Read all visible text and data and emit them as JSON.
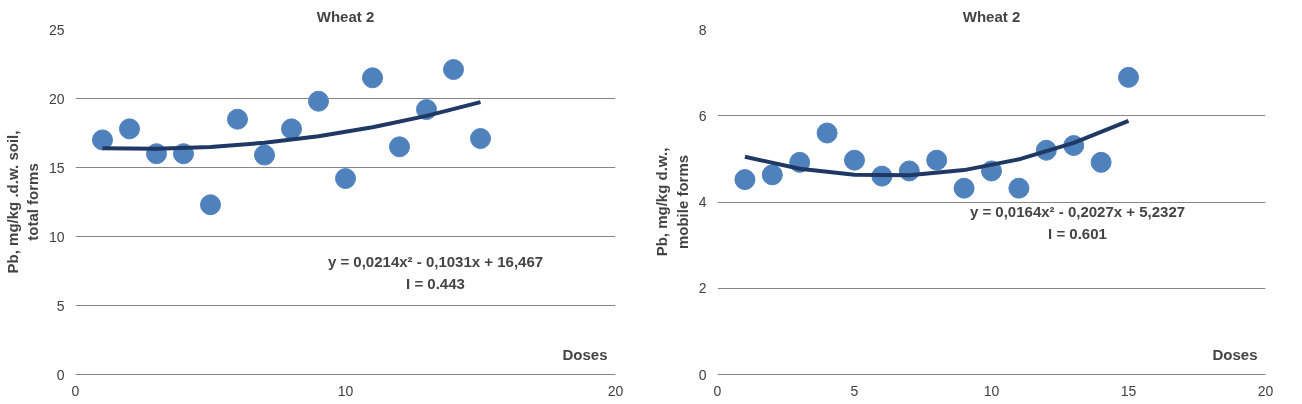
{
  "chart_data": [
    {
      "type": "scatter",
      "title": "Wheat 2",
      "xlabel": "Doses",
      "ylabel": "Pb, mg/kg .d.w. soil,\ntotal forms",
      "xlim": [
        0,
        20
      ],
      "xticks": [
        0,
        10,
        20
      ],
      "ylim": [
        0,
        25
      ],
      "yticks": [
        0,
        5,
        10,
        15,
        20,
        25
      ],
      "grid": "y",
      "series": [
        {
          "marker": "circle",
          "color": "#4f81bd",
          "x": [
            1,
            2,
            3,
            4,
            5,
            6,
            7,
            8,
            9,
            10,
            11,
            12,
            13,
            14,
            15
          ],
          "values": [
            17.0,
            17.8,
            16.0,
            16.0,
            12.3,
            18.5,
            15.9,
            17.8,
            19.8,
            14.2,
            21.5,
            16.5,
            19.2,
            22.1,
            17.1
          ]
        },
        {
          "type": "line",
          "marker": "none",
          "color": "#1f3864",
          "x": [
            1,
            3,
            5,
            7,
            9,
            11,
            13,
            15
          ],
          "values": [
            16.39,
            16.35,
            16.49,
            16.79,
            17.27,
            17.92,
            18.74,
            19.74
          ]
        }
      ],
      "annotations": [
        "y = 0,0214x² - 0,1031x + 16,467",
        "I = 0.443"
      ]
    },
    {
      "type": "scatter",
      "title": "Wheat 2",
      "xlabel": "Doses",
      "ylabel": "Pb, mg/kg d.w.,\nmobile forms",
      "xlim": [
        0,
        20
      ],
      "xticks": [
        0,
        5,
        10,
        15,
        20
      ],
      "ylim": [
        0,
        8
      ],
      "yticks": [
        0,
        2,
        4,
        6,
        8
      ],
      "grid": "y",
      "series": [
        {
          "marker": "circle",
          "color": "#4f81bd",
          "x": [
            1,
            2,
            3,
            4,
            5,
            6,
            7,
            8,
            9,
            10,
            11,
            12,
            13,
            14,
            15
          ],
          "values": [
            4.52,
            4.63,
            4.92,
            5.6,
            4.97,
            4.6,
            4.72,
            4.97,
            4.32,
            4.72,
            4.32,
            5.2,
            5.31,
            4.92,
            6.89
          ]
        },
        {
          "type": "line",
          "marker": "none",
          "color": "#1f3864",
          "x": [
            1,
            3,
            5,
            7,
            9,
            11,
            13,
            15
          ],
          "values": [
            5.05,
            4.77,
            4.63,
            4.62,
            4.74,
            4.99,
            5.37,
            5.88
          ]
        }
      ],
      "annotations": [
        "y = 0,0164x² - 0,2027x + 5,2327",
        "I = 0.601"
      ]
    }
  ]
}
